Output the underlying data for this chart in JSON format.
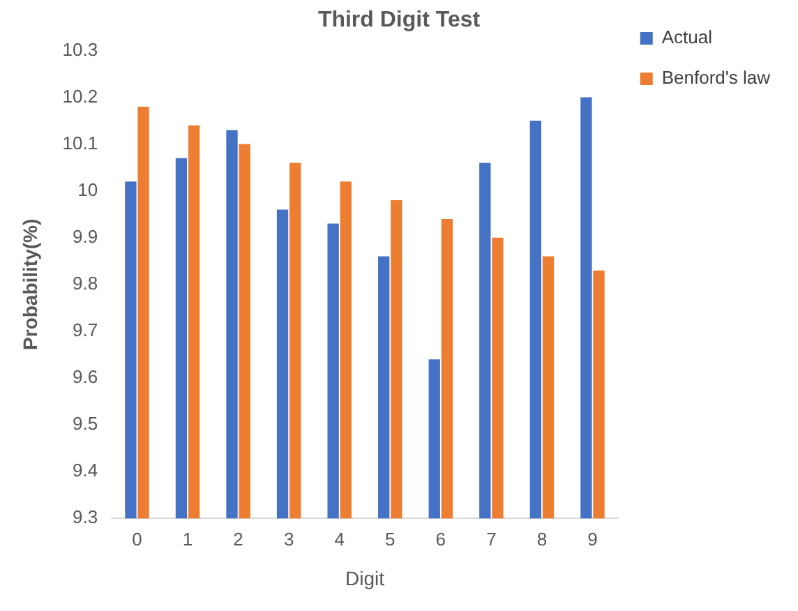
{
  "chart_data": {
    "type": "bar",
    "title": "Third Digit Test",
    "xlabel": "Digit",
    "ylabel": "Probability(%)",
    "categories": [
      "0",
      "1",
      "2",
      "3",
      "4",
      "5",
      "6",
      "7",
      "8",
      "9"
    ],
    "series": [
      {
        "name": "Actual",
        "color": "#4472c4",
        "values": [
          10.02,
          10.07,
          10.13,
          9.96,
          9.93,
          9.86,
          9.64,
          10.06,
          10.15,
          10.2
        ]
      },
      {
        "name": "Benford's law",
        "color": "#ed7d31",
        "values": [
          10.18,
          10.14,
          10.1,
          10.06,
          10.02,
          9.98,
          9.94,
          9.9,
          9.86,
          9.83
        ]
      }
    ],
    "ylim": [
      9.3,
      10.3
    ],
    "yticks": [
      9.3,
      9.4,
      9.5,
      9.6,
      9.7,
      9.8,
      9.9,
      10,
      10.1,
      10.2,
      10.3
    ],
    "grid": false,
    "legend": "top right"
  }
}
